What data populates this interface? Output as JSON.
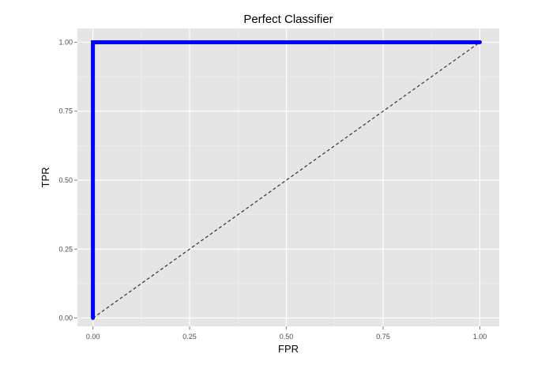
{
  "chart_data": {
    "type": "line",
    "title": "Perfect Classifier",
    "xlabel": "FPR",
    "ylabel": "TPR",
    "xlim": [
      -0.04,
      1.05
    ],
    "ylim": [
      -0.03,
      1.05
    ],
    "x_ticks": [
      0.0,
      0.25,
      0.5,
      0.75,
      1.0
    ],
    "x_tick_labels": [
      "0.00",
      "0.25",
      "0.50",
      "0.75",
      "1.00"
    ],
    "y_ticks": [
      0.0,
      0.25,
      0.5,
      0.75,
      1.0
    ],
    "y_tick_labels": [
      "0.00",
      "0.25",
      "0.50",
      "0.75",
      "1.00"
    ],
    "grid": true,
    "series": [
      {
        "style": "solid",
        "color": "#0000ff",
        "x": [
          0,
          0,
          1
        ],
        "y": [
          0,
          1,
          1
        ]
      },
      {
        "style": "dashed",
        "color": "#333333",
        "x": [
          0,
          1
        ],
        "y": [
          0,
          1
        ]
      }
    ],
    "colors": {
      "panel_background": "#e5e5e5",
      "major_grid": "#ffffff",
      "minor_grid": "#f2f2f2"
    }
  }
}
